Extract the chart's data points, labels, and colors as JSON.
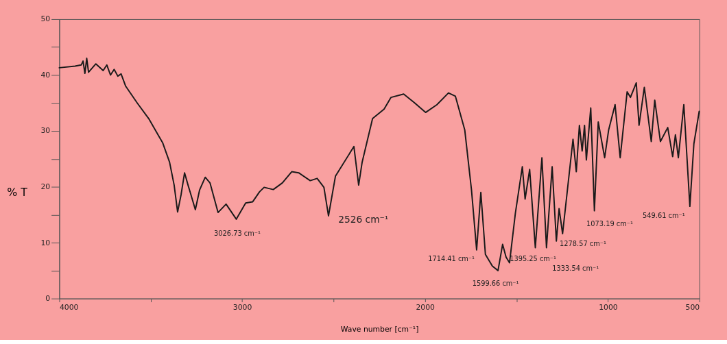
{
  "chart_data": {
    "type": "line",
    "xlabel": "Wave number [cm⁻¹]",
    "ylabel": "% T",
    "xlim": [
      4000,
      500
    ],
    "ylim": [
      0,
      50
    ],
    "xticks": [
      4000,
      {
        "value": 3500,
        "label": null
      },
      3000,
      {
        "value": 2500,
        "label": null
      },
      2000,
      {
        "value": 1500,
        "label": null
      },
      1000,
      500
    ],
    "yticks": [
      0,
      {
        "value": 5,
        "label": null
      },
      10,
      {
        "value": 15,
        "label": null
      },
      20,
      {
        "value": 25,
        "label": null
      },
      30,
      {
        "value": 35,
        "label": null
      },
      40,
      {
        "value": 45,
        "label": null
      },
      50
    ],
    "grid": false,
    "marker": "none",
    "line_style": "solid",
    "x": [
      4000,
      3914,
      3880,
      3870,
      3860,
      3850,
      3840,
      3800,
      3760,
      3740,
      3720,
      3700,
      3680,
      3662,
      3637,
      3574,
      3511,
      3460,
      3435,
      3397,
      3372,
      3353,
      3334,
      3315,
      3296,
      3284,
      3256,
      3233,
      3202,
      3176,
      3132,
      3088,
      3032,
      2981,
      2943,
      2905,
      2880,
      2830,
      2780,
      2729,
      2691,
      2628,
      2590,
      2553,
      2528,
      2490,
      2389,
      2363,
      2344,
      2287,
      2224,
      2186,
      2117,
      2060,
      1997,
      1935,
      1872,
      1834,
      1783,
      1746,
      1718,
      1695,
      1670,
      1632,
      1601,
      1576,
      1557,
      1538,
      1506,
      1468,
      1453,
      1428,
      1397,
      1361,
      1336,
      1305,
      1282,
      1267,
      1248,
      1191,
      1173,
      1156,
      1141,
      1128,
      1118,
      1094,
      1074,
      1053,
      1018,
      996,
      961,
      933,
      895,
      877,
      845,
      830,
      801,
      763,
      744,
      713,
      673,
      646,
      631,
      615,
      585,
      552,
      530,
      501
    ],
    "series": [
      {
        "color": "#1a1a1a",
        "values": [
          41.3,
          41.6,
          41.8,
          42.5,
          40.3,
          43,
          40.5,
          42,
          40.8,
          41.8,
          40,
          41,
          39.8,
          40.2,
          38,
          35,
          32.2,
          29.3,
          27.9,
          24.4,
          20.3,
          15.5,
          18.6,
          22.5,
          20.3,
          19,
          15.9,
          19.4,
          21.7,
          20.7,
          15.4,
          16.9,
          14.2,
          17.1,
          17.3,
          19.1,
          19.9,
          19.5,
          20.7,
          22.7,
          22.5,
          21.1,
          21.5,
          19.9,
          14.8,
          21.9,
          27.2,
          20.3,
          24.4,
          32.2,
          33.9,
          36,
          36.6,
          35.1,
          33.3,
          34.7,
          36.8,
          36.2,
          30.2,
          19.4,
          8.7,
          19,
          7.9,
          5.8,
          5,
          9.7,
          7.4,
          6.4,
          15.3,
          23.6,
          17.8,
          23.1,
          9.1,
          25.2,
          9.1,
          23.6,
          10.3,
          16.1,
          11.6,
          28.5,
          22.7,
          31,
          26.4,
          31,
          24.8,
          34.1,
          15.7,
          31.6,
          25.2,
          30.2,
          34.7,
          25.2,
          37,
          36,
          38.6,
          31,
          37.8,
          28.1,
          35.5,
          28.1,
          30.6,
          25.4,
          29.3,
          25.2,
          34.7,
          16.5,
          27.7,
          33.5
        ]
      }
    ],
    "annotations": [
      {
        "text": "3026.73 cm⁻¹",
        "x": 3026.73,
        "y": 14.2
      },
      {
        "text": "2526 cm⁻¹",
        "x": 2526,
        "y": 14.8
      },
      {
        "text": "1714.41 cm⁻¹",
        "x": 1714.41,
        "y": 8.7
      },
      {
        "text": "1599.66 cm⁻¹",
        "x": 1599.66,
        "y": 5
      },
      {
        "text": "1395.25 cm⁻¹",
        "x": 1395.25,
        "y": 9.1
      },
      {
        "text": "1333.54 cm⁻¹",
        "x": 1333.54,
        "y": 9.1
      },
      {
        "text": "1278.57 cm⁻¹",
        "x": 1278.57,
        "y": 10.3
      },
      {
        "text": "1073.19 cm⁻¹",
        "x": 1073.19,
        "y": 15.7
      },
      {
        "text": "549.61 cm⁻¹",
        "x": 549.61,
        "y": 16.5
      }
    ]
  }
}
